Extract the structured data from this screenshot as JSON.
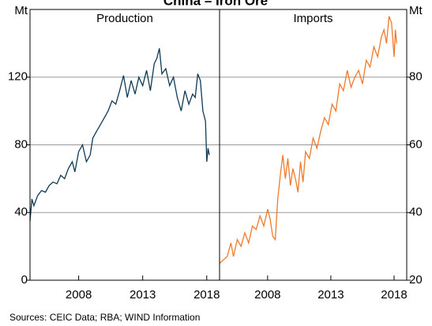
{
  "title": "China – Iron Ore",
  "source": "Sources: CEIC Data; RBA; WIND Information",
  "chart_data": [
    {
      "type": "line",
      "title": "Production",
      "y_label": "Mt",
      "axis_side": "left",
      "color": "#0e3a55",
      "x": [
        2004.2,
        2004.35,
        2004.5,
        2004.8,
        2005.1,
        2005.4,
        2005.7,
        2006.0,
        2006.3,
        2006.6,
        2006.9,
        2007.2,
        2007.5,
        2007.7,
        2008.0,
        2008.3,
        2008.6,
        2008.9,
        2009.1,
        2009.4,
        2009.7,
        2010.0,
        2010.3,
        2010.6,
        2010.9,
        2011.2,
        2011.5,
        2011.8,
        2012.1,
        2012.4,
        2012.7,
        2013.0,
        2013.3,
        2013.6,
        2013.9,
        2014.1,
        2014.3,
        2014.5,
        2014.8,
        2015.1,
        2015.4,
        2015.7,
        2016.0,
        2016.3,
        2016.6,
        2016.9,
        2017.1,
        2017.3,
        2017.5,
        2017.7,
        2017.9,
        2018.0,
        2018.1,
        2018.2
      ],
      "values": [
        35,
        48,
        44,
        50,
        53,
        52,
        56,
        58,
        57,
        62,
        60,
        66,
        70,
        64,
        76,
        80,
        70,
        74,
        84,
        88,
        92,
        96,
        100,
        106,
        104,
        112,
        121,
        108,
        118,
        110,
        120,
        115,
        124,
        112,
        128,
        131,
        137,
        122,
        125,
        115,
        120,
        108,
        100,
        112,
        104,
        110,
        108,
        122,
        118,
        100,
        94,
        70,
        78,
        74
      ],
      "xlim": [
        2004.2,
        2019
      ],
      "xticks": [
        2008,
        2013,
        2018
      ],
      "ylim": [
        0,
        160
      ],
      "yticks": [
        0,
        40,
        80,
        120
      ]
    },
    {
      "type": "line",
      "title": "Imports",
      "y_label": "Mt",
      "axis_side": "right",
      "color": "#f07a2a",
      "x": [
        2004.2,
        2004.5,
        2004.8,
        2005.1,
        2005.3,
        2005.6,
        2005.9,
        2006.2,
        2006.5,
        2006.8,
        2007.1,
        2007.4,
        2007.7,
        2008.0,
        2008.2,
        2008.4,
        2008.6,
        2008.8,
        2009.0,
        2009.2,
        2009.4,
        2009.6,
        2009.8,
        2010.0,
        2010.2,
        2010.4,
        2010.6,
        2010.8,
        2011.0,
        2011.3,
        2011.6,
        2011.9,
        2012.2,
        2012.5,
        2012.8,
        2013.1,
        2013.4,
        2013.7,
        2014.0,
        2014.3,
        2014.6,
        2014.9,
        2015.2,
        2015.5,
        2015.8,
        2016.1,
        2016.4,
        2016.7,
        2017.0,
        2017.2,
        2017.4,
        2017.6,
        2017.8,
        2018.0,
        2018.1,
        2018.2
      ],
      "values": [
        25,
        26,
        27,
        31,
        27,
        32,
        30,
        34,
        31,
        36,
        35,
        39,
        36,
        41,
        38,
        33,
        32,
        44,
        51,
        57,
        50,
        56,
        48,
        53,
        50,
        46,
        55,
        49,
        58,
        56,
        62,
        59,
        64,
        68,
        66,
        72,
        70,
        78,
        76,
        82,
        77,
        80,
        82,
        78,
        85,
        83,
        89,
        86,
        92,
        94,
        90,
        98,
        96,
        86,
        94,
        90
      ],
      "xlim": [
        2004.2,
        2019
      ],
      "xticks": [
        2008,
        2013,
        2018
      ],
      "ylim": [
        20,
        100
      ],
      "yticks": [
        20,
        40,
        60,
        80
      ]
    }
  ]
}
